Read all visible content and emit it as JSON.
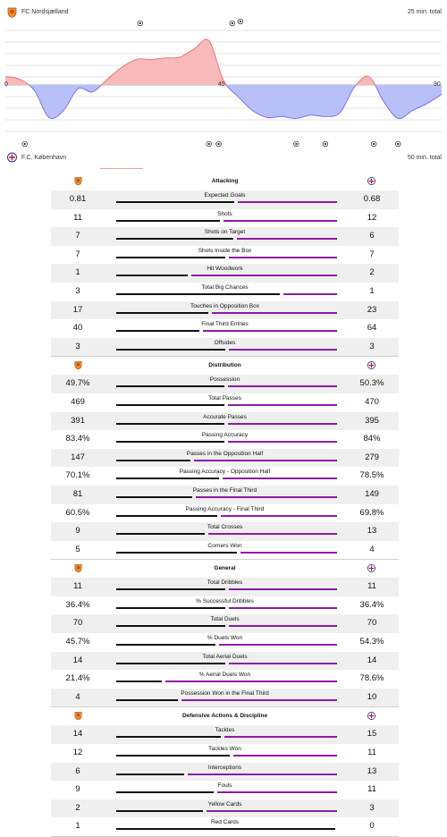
{
  "header": {
    "home_team": "FC Nordsjælland",
    "away_team": "F.C. København",
    "home_total": "25 min. total",
    "away_total": "50 min. total",
    "x_start": "0",
    "x_half": "45",
    "x_end": "90"
  },
  "colors": {
    "home_fill": "#f7b9b9",
    "home_line": "#e87070",
    "away_fill": "#b9bff7",
    "away_line": "#6b6be8",
    "home_bar": "#111111",
    "away_bar": "#8e1aa8"
  },
  "momentum": {
    "minutes": [
      0,
      3,
      6,
      9,
      12,
      15,
      18,
      21,
      24,
      27,
      30,
      33,
      36,
      39,
      42,
      45,
      48,
      51,
      54,
      57,
      60,
      63,
      66,
      69,
      72,
      75,
      78,
      81,
      84,
      87,
      90
    ],
    "values": [
      0.18,
      0.12,
      -0.12,
      -0.7,
      -0.55,
      -0.08,
      -0.15,
      0.12,
      0.38,
      0.55,
      0.55,
      0.58,
      0.6,
      0.78,
      0.95,
      0.1,
      -0.25,
      -0.55,
      -0.7,
      -0.68,
      -0.72,
      -0.65,
      -0.68,
      -0.6,
      -0.05,
      0.18,
      -0.35,
      -0.72,
      -0.55,
      -0.4,
      -0.2
    ],
    "home_goal_minutes": [
      28,
      47
    ],
    "home_small_events": [
      28,
      47
    ],
    "away_events": [
      4,
      42,
      44,
      60,
      66,
      76,
      81
    ]
  },
  "sections": [
    {
      "title": "Attacking",
      "rows": [
        {
          "label": "Expected Goals",
          "home": "0.81",
          "away": "0.68",
          "hn": 0.81,
          "an": 0.68
        },
        {
          "label": "Shots",
          "home": "11",
          "away": "12",
          "hn": 11,
          "an": 12
        },
        {
          "label": "Shots on Target",
          "home": "7",
          "away": "6",
          "hn": 7,
          "an": 6
        },
        {
          "label": "Shots Inside the Box",
          "home": "7",
          "away": "7",
          "hn": 7,
          "an": 7
        },
        {
          "label": "Hit Woodwork",
          "home": "1",
          "away": "2",
          "hn": 1,
          "an": 2
        },
        {
          "label": "Total Big Chances",
          "home": "3",
          "away": "1",
          "hn": 3,
          "an": 1
        },
        {
          "label": "Touches in Opposition Box",
          "home": "17",
          "away": "23",
          "hn": 17,
          "an": 23
        },
        {
          "label": "Final Third Entries",
          "home": "40",
          "away": "64",
          "hn": 40,
          "an": 64
        },
        {
          "label": "Offsides",
          "home": "3",
          "away": "3",
          "hn": 3,
          "an": 3
        }
      ]
    },
    {
      "title": "Distribution",
      "rows": [
        {
          "label": "Possession",
          "home": "49.7%",
          "away": "50.3%",
          "hn": 49.7,
          "an": 50.3
        },
        {
          "label": "Total Passes",
          "home": "469",
          "away": "470",
          "hn": 469,
          "an": 470
        },
        {
          "label": "Accurate Passes",
          "home": "391",
          "away": "395",
          "hn": 391,
          "an": 395
        },
        {
          "label": "Passing Accuracy",
          "home": "83.4%",
          "away": "84%",
          "hn": 83.4,
          "an": 84
        },
        {
          "label": "Passes in the Opposition Half",
          "home": "147",
          "away": "279",
          "hn": 147,
          "an": 279
        },
        {
          "label": "Passing Accuracy - Opposition Half",
          "home": "70.1%",
          "away": "78.5%",
          "hn": 70.1,
          "an": 78.5
        },
        {
          "label": "Passes in the Final Third",
          "home": "81",
          "away": "149",
          "hn": 81,
          "an": 149
        },
        {
          "label": "Passing Accuracy - Final Third",
          "home": "60.5%",
          "away": "69.8%",
          "hn": 60.5,
          "an": 69.8
        },
        {
          "label": "Total Crosses",
          "home": "9",
          "away": "13",
          "hn": 9,
          "an": 13
        },
        {
          "label": "Corners Won",
          "home": "5",
          "away": "4",
          "hn": 5,
          "an": 4
        }
      ]
    },
    {
      "title": "General",
      "rows": [
        {
          "label": "Total Dribbles",
          "home": "11",
          "away": "11",
          "hn": 11,
          "an": 11
        },
        {
          "label": "% Successful Dribbles",
          "home": "36.4%",
          "away": "36.4%",
          "hn": 36.4,
          "an": 36.4
        },
        {
          "label": "Total Duels",
          "home": "70",
          "away": "70",
          "hn": 70,
          "an": 70
        },
        {
          "label": "% Duels Won",
          "home": "45.7%",
          "away": "54.3%",
          "hn": 45.7,
          "an": 54.3
        },
        {
          "label": "Total Aerial Duels",
          "home": "14",
          "away": "14",
          "hn": 14,
          "an": 14
        },
        {
          "label": "% Aerial Duels Won",
          "home": "21.4%",
          "away": "78.6%",
          "hn": 21.4,
          "an": 78.6
        },
        {
          "label": "Possession Won in the Final Third",
          "home": "4",
          "away": "10",
          "hn": 4,
          "an": 10
        }
      ]
    },
    {
      "title": "Defensive Actions & Discipline",
      "rows": [
        {
          "label": "Tackles",
          "home": "14",
          "away": "15",
          "hn": 14,
          "an": 15
        },
        {
          "label": "Tackles Won",
          "home": "12",
          "away": "11",
          "hn": 12,
          "an": 11
        },
        {
          "label": "Interceptions",
          "home": "6",
          "away": "13",
          "hn": 6,
          "an": 13
        },
        {
          "label": "Fouls",
          "home": "9",
          "away": "11",
          "hn": 9,
          "an": 11
        },
        {
          "label": "Yellow Cards",
          "home": "2",
          "away": "3",
          "hn": 2,
          "an": 3
        },
        {
          "label": "Red Cards",
          "home": "1",
          "away": "0",
          "hn": 1,
          "an": 0
        }
      ]
    }
  ]
}
